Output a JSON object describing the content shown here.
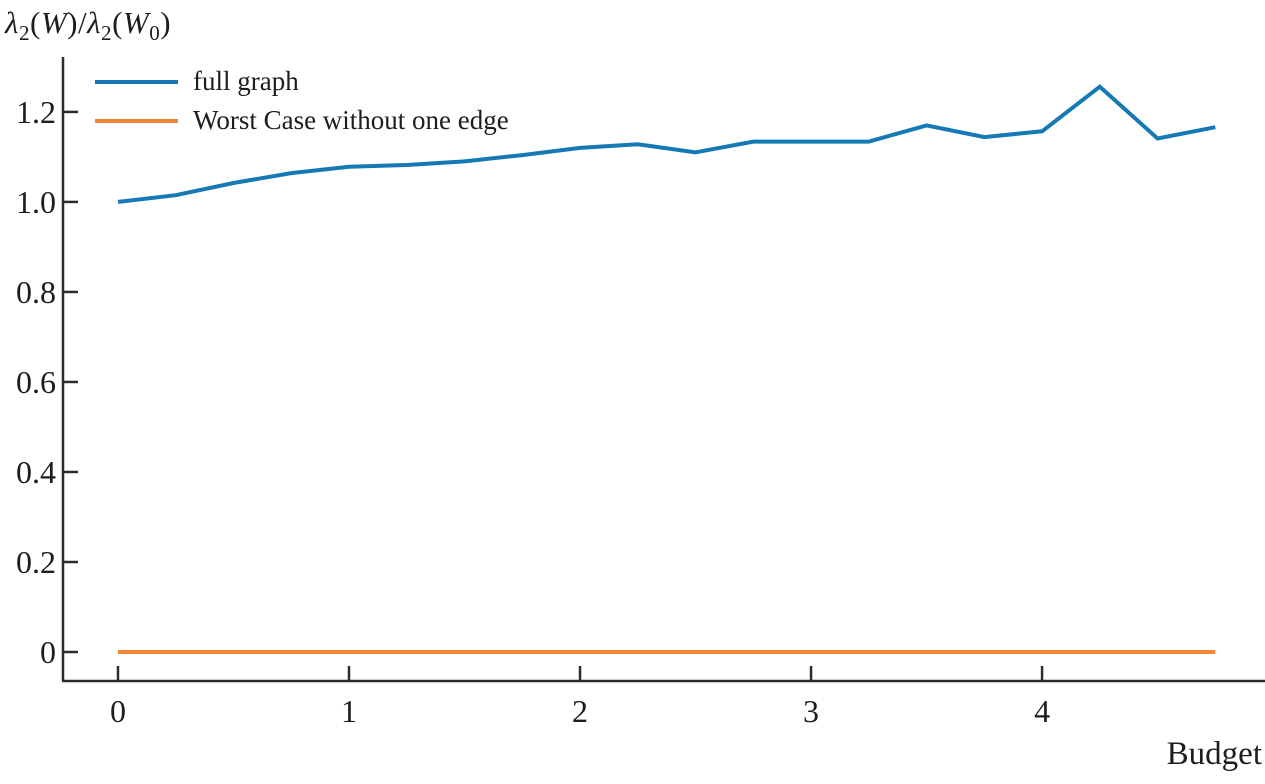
{
  "figure": {
    "x_axis_title": "Budget",
    "y_axis_title_text": "λ₂(W)/λ₂(W₀)",
    "y_axis_title_parts": [
      {
        "t": "λ",
        "sub": false,
        "italic": true
      },
      {
        "t": "2",
        "sub": true,
        "italic": false
      },
      {
        "t": "(",
        "sub": false,
        "italic": false
      },
      {
        "t": "W",
        "sub": false,
        "italic": true
      },
      {
        "t": ")/",
        "sub": false,
        "italic": false
      },
      {
        "t": "λ",
        "sub": false,
        "italic": true
      },
      {
        "t": "2",
        "sub": true,
        "italic": false
      },
      {
        "t": "(",
        "sub": false,
        "italic": false
      },
      {
        "t": "W",
        "sub": false,
        "italic": true
      },
      {
        "t": "0",
        "sub": true,
        "italic": false
      },
      {
        "t": ")",
        "sub": false,
        "italic": false
      }
    ]
  },
  "colors": {
    "axis": "#2b2b29",
    "text": "#1d1d1b",
    "background": "#ffffff"
  },
  "chart_data": {
    "type": "line",
    "title": "",
    "xlabel": "Budget",
    "ylabel": "λ₂(W)/λ₂(W₀)",
    "grid": false,
    "legend_position": "upper-left",
    "xlim": [
      -0.238,
      4.965
    ],
    "ylim": [
      -0.0644,
      1.322
    ],
    "x_ticks": [
      0,
      1,
      2,
      3,
      4
    ],
    "x_tick_labels": [
      "0",
      "1",
      "2",
      "3",
      "4"
    ],
    "y_ticks": [
      0,
      0.2,
      0.4,
      0.6,
      0.8,
      1.0,
      1.2
    ],
    "y_tick_labels": [
      "0",
      "0.2",
      "0.4",
      "0.6",
      "0.8",
      "1.0",
      "1.2"
    ],
    "x": [
      0,
      0.25,
      0.5,
      0.75,
      1.0,
      1.25,
      1.5,
      1.75,
      2.0,
      2.25,
      2.5,
      2.75,
      3.0,
      3.25,
      3.5,
      3.75,
      4.0,
      4.25,
      4.5,
      4.75
    ],
    "series": [
      {
        "name": "full graph",
        "color": "#1579b5",
        "values": [
          1.0,
          1.015,
          1.042,
          1.064,
          1.078,
          1.082,
          1.09,
          1.104,
          1.12,
          1.128,
          1.11,
          1.134,
          1.134,
          1.134,
          1.17,
          1.144,
          1.157,
          1.256,
          1.141,
          1.166
        ]
      },
      {
        "name": "Worst Case without one edge",
        "color": "#f28638",
        "values": [
          0,
          0,
          0,
          0,
          0,
          0,
          0,
          0,
          0,
          0,
          0,
          0,
          0,
          0,
          0,
          0,
          0,
          0,
          0,
          0
        ]
      }
    ]
  }
}
